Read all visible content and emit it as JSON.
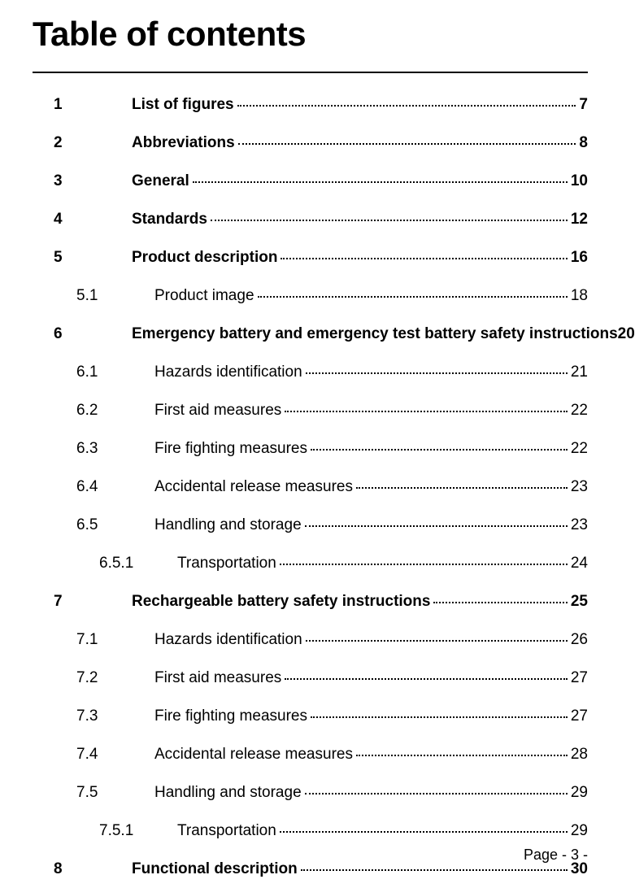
{
  "title": "Table of contents",
  "footer": "Page - 3 -",
  "entries": [
    {
      "level": 1,
      "num": "1",
      "label": "List of figures",
      "page": "7",
      "dots": true
    },
    {
      "level": 1,
      "num": "2",
      "label": "Abbreviations",
      "page": "8",
      "dots": true
    },
    {
      "level": 1,
      "num": "3",
      "label": "General",
      "page": "10",
      "dots": true
    },
    {
      "level": 1,
      "num": "4",
      "label": "Standards",
      "page": "12",
      "dots": true
    },
    {
      "level": 1,
      "num": "5",
      "label": "Product description",
      "page": "16",
      "dots": true
    },
    {
      "level": 2,
      "num": "5.1",
      "label": "Product image",
      "page": "18",
      "dots": true
    },
    {
      "level": 1,
      "num": "6",
      "label": "Emergency battery and emergency test battery safety instructions",
      "page": "20",
      "dots": false
    },
    {
      "level": 2,
      "num": "6.1",
      "label": "Hazards identification",
      "page": "21",
      "dots": true
    },
    {
      "level": 2,
      "num": "6.2",
      "label": "First aid measures",
      "page": "22",
      "dots": true
    },
    {
      "level": 2,
      "num": "6.3",
      "label": "Fire fighting measures",
      "page": "22",
      "dots": true
    },
    {
      "level": 2,
      "num": "6.4",
      "label": "Accidental release measures",
      "page": "23",
      "dots": true
    },
    {
      "level": 2,
      "num": "6.5",
      "label": "Handling and storage",
      "page": "23",
      "dots": true
    },
    {
      "level": 3,
      "num": "6.5.1",
      "label": "Transportation",
      "page": "24",
      "dots": true
    },
    {
      "level": 1,
      "num": "7",
      "label": "Rechargeable battery safety instructions",
      "page": "25",
      "dots": true
    },
    {
      "level": 2,
      "num": "7.1",
      "label": "Hazards identification",
      "page": "26",
      "dots": true
    },
    {
      "level": 2,
      "num": "7.2",
      "label": "First aid measures",
      "page": "27",
      "dots": true
    },
    {
      "level": 2,
      "num": "7.3",
      "label": "Fire fighting measures",
      "page": "27",
      "dots": true
    },
    {
      "level": 2,
      "num": "7.4",
      "label": "Accidental release measures",
      "page": "28",
      "dots": true
    },
    {
      "level": 2,
      "num": "7.5",
      "label": "Handling and storage",
      "page": "29",
      "dots": true
    },
    {
      "level": 3,
      "num": "7.5.1",
      "label": "Transportation",
      "page": "29",
      "dots": true
    },
    {
      "level": 1,
      "num": "8",
      "label": "Functional description",
      "page": "30",
      "dots": true
    }
  ]
}
